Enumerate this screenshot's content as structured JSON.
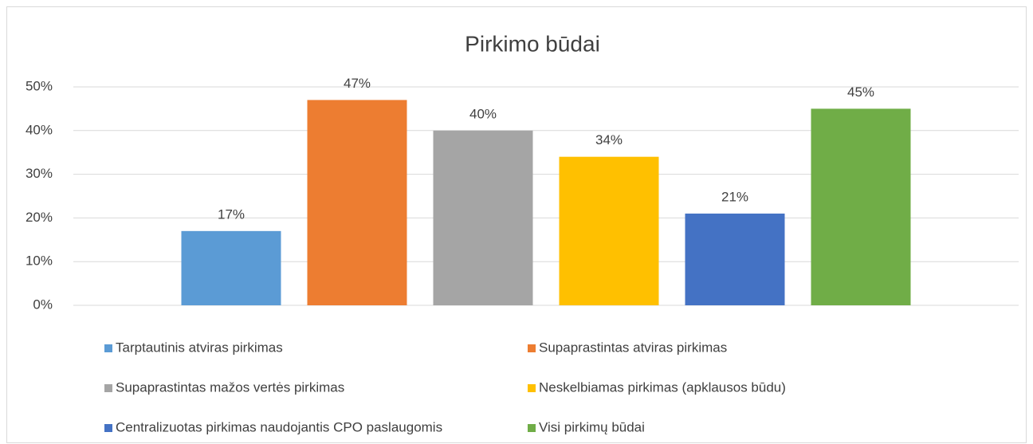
{
  "chart_data": {
    "type": "bar",
    "title": "Pirkimo būdai",
    "series": [
      {
        "name": "Tarptautinis atviras pirkimas",
        "color": "#5b9bd5",
        "values": [
          17
        ],
        "value_labels": [
          "17%"
        ]
      },
      {
        "name": "Supaprastintas atviras pirkimas",
        "color": "#ed7d31",
        "values": [
          47
        ],
        "value_labels": [
          "47%"
        ]
      },
      {
        "name": "Supaprastintas mažos vertės pirkimas",
        "color": "#a5a5a5",
        "values": [
          40
        ],
        "value_labels": [
          "40%"
        ]
      },
      {
        "name": "Neskelbiamas pirkimas (apklausos būdu)",
        "color": "#ffc000",
        "values": [
          34
        ],
        "value_labels": [
          "34%"
        ]
      },
      {
        "name": "Centralizuotas pirkimas naudojantis CPO paslaugomis",
        "color": "#4472c4",
        "values": [
          21
        ],
        "value_labels": [
          "21%"
        ]
      },
      {
        "name": "Visi pirkimų būdai",
        "color": "#70ad47",
        "values": [
          45
        ],
        "value_labels": [
          "45%"
        ]
      }
    ],
    "ylim": [
      0,
      50
    ],
    "yticks": [
      {
        "value": 0,
        "label": "0%"
      },
      {
        "value": 10,
        "label": "10%"
      },
      {
        "value": 20,
        "label": "20%"
      },
      {
        "value": 30,
        "label": "30%"
      },
      {
        "value": 40,
        "label": "40%"
      },
      {
        "value": 50,
        "label": "50%"
      }
    ],
    "grid": true,
    "legend": "bottom"
  }
}
